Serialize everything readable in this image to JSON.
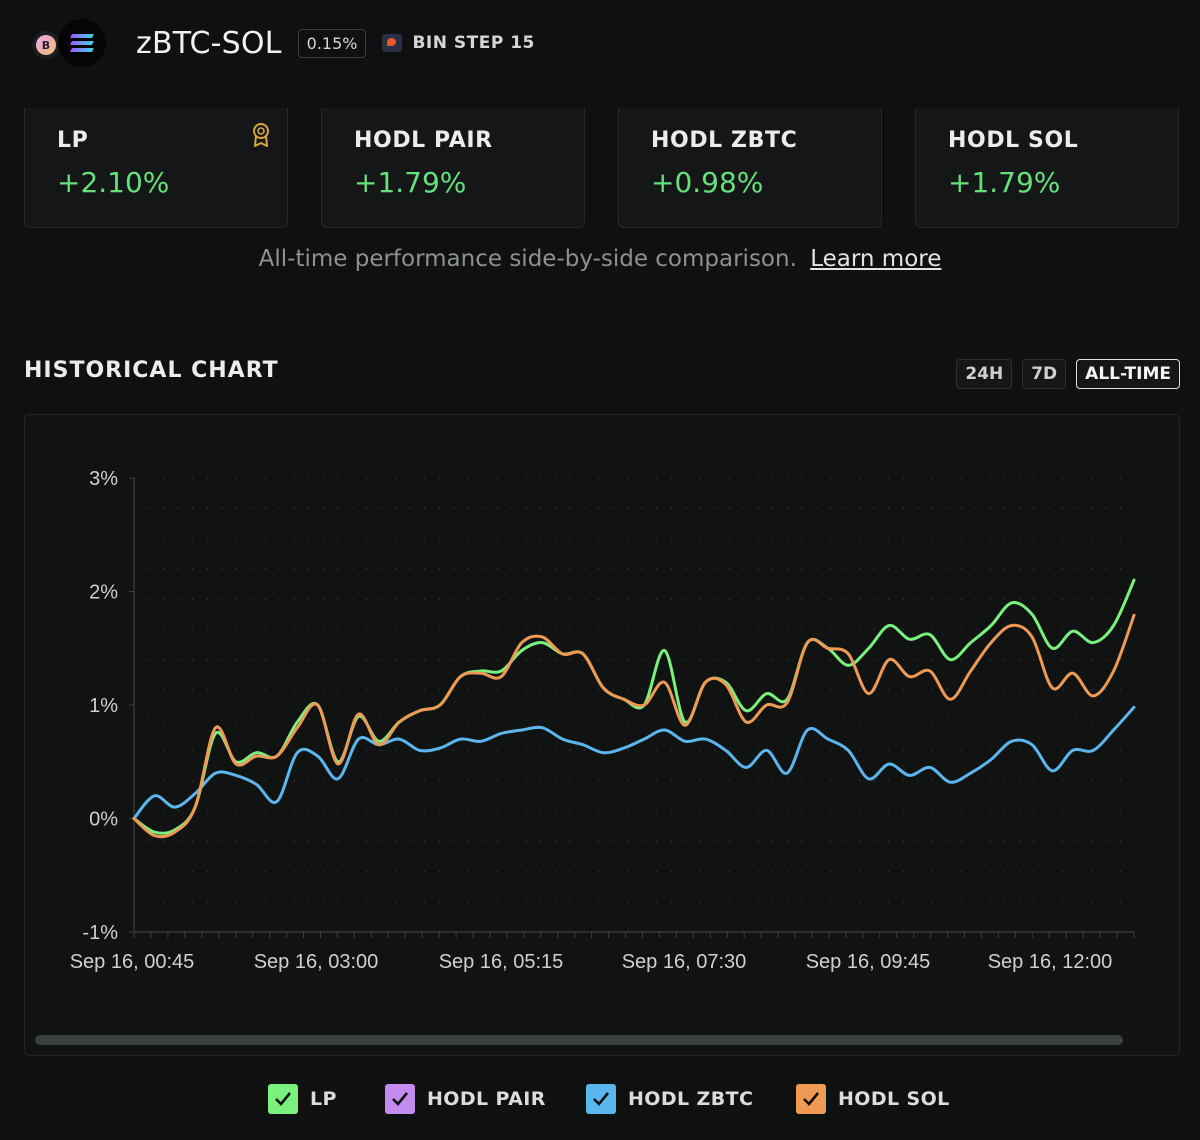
{
  "header": {
    "pair_name": "zBTC-SOL",
    "fee": "0.15%",
    "bin_step": "BIN STEP 15",
    "icons": [
      "zbtc-token-icon",
      "sol-token-icon",
      "bin-step-icon"
    ]
  },
  "cards": [
    {
      "label": "LP",
      "value": "+2.10%",
      "icon": "award-icon"
    },
    {
      "label": "HODL PAIR",
      "value": "+1.79%"
    },
    {
      "label": "HODL ZBTC",
      "value": "+0.98%"
    },
    {
      "label": "HODL SOL",
      "value": "+1.79%"
    }
  ],
  "caption": {
    "text": "All-time performance side-by-side comparison.",
    "link": "Learn more"
  },
  "historical": {
    "title": "HISTORICAL CHART",
    "ranges": [
      "24H",
      "7D",
      "ALL-TIME"
    ],
    "active_range": "ALL-TIME"
  },
  "colors": {
    "positive": "#66e07a",
    "lp": "#7af07f",
    "hodl_pair": "#c58cf0",
    "hodl_zbtc": "#5cb6ee",
    "hodl_sol": "#ee9a55"
  },
  "chart_data": {
    "type": "line",
    "title": "",
    "xlabel": "",
    "ylabel": "",
    "ylim": [
      -1,
      3
    ],
    "y_ticks": [
      "3%",
      "2%",
      "1%",
      "0%",
      "-1%"
    ],
    "x_ticks": [
      "Sep 16, 00:45",
      "Sep 16, 03:00",
      "Sep 16, 05:15",
      "Sep 16, 07:30",
      "Sep 16, 09:45",
      "Sep 16, 12:00"
    ],
    "x": [
      "00:30",
      "00:45",
      "01:00",
      "01:15",
      "01:30",
      "01:45",
      "02:00",
      "02:15",
      "02:30",
      "02:45",
      "03:00",
      "03:15",
      "03:30",
      "03:45",
      "04:00",
      "04:15",
      "04:30",
      "04:45",
      "05:00",
      "05:15",
      "05:30",
      "05:45",
      "06:00",
      "06:15",
      "06:30",
      "06:45",
      "07:00",
      "07:15",
      "07:30",
      "07:45",
      "08:00",
      "08:15",
      "08:30",
      "08:45",
      "09:00",
      "09:15",
      "09:30",
      "09:45",
      "10:00",
      "10:15",
      "10:30",
      "10:45",
      "11:00",
      "11:15",
      "11:30",
      "11:45",
      "12:00",
      "12:15",
      "12:30",
      "12:45"
    ],
    "grid": true,
    "legend_position": "bottom",
    "series": [
      {
        "name": "LP",
        "color": "#7af07f",
        "values": [
          0.0,
          -0.12,
          -0.1,
          0.1,
          0.75,
          0.5,
          0.58,
          0.55,
          0.85,
          1.0,
          0.5,
          0.9,
          0.68,
          0.85,
          0.95,
          1.0,
          1.25,
          1.3,
          1.3,
          1.48,
          1.55,
          1.45,
          1.45,
          1.15,
          1.05,
          1.0,
          1.48,
          0.85,
          1.2,
          1.2,
          0.95,
          1.1,
          1.05,
          1.55,
          1.5,
          1.35,
          1.5,
          1.7,
          1.58,
          1.62,
          1.4,
          1.55,
          1.7,
          1.9,
          1.8,
          1.5,
          1.65,
          1.55,
          1.7,
          2.1
        ]
      },
      {
        "name": "HODL SOL",
        "color": "#ee9a55",
        "values": [
          0.0,
          -0.15,
          -0.12,
          0.1,
          0.8,
          0.48,
          0.55,
          0.55,
          0.8,
          1.0,
          0.48,
          0.92,
          0.65,
          0.85,
          0.95,
          1.0,
          1.25,
          1.28,
          1.25,
          1.55,
          1.6,
          1.45,
          1.45,
          1.15,
          1.05,
          1.0,
          1.2,
          0.82,
          1.2,
          1.18,
          0.85,
          1.0,
          1.02,
          1.55,
          1.5,
          1.45,
          1.1,
          1.4,
          1.25,
          1.3,
          1.05,
          1.3,
          1.55,
          1.7,
          1.6,
          1.15,
          1.28,
          1.08,
          1.3,
          1.79
        ]
      },
      {
        "name": "HODL ZBTC",
        "color": "#5cb6ee",
        "values": [
          0.0,
          0.2,
          0.1,
          0.22,
          0.4,
          0.38,
          0.3,
          0.15,
          0.58,
          0.55,
          0.35,
          0.7,
          0.65,
          0.7,
          0.6,
          0.62,
          0.7,
          0.68,
          0.75,
          0.78,
          0.8,
          0.7,
          0.65,
          0.58,
          0.62,
          0.7,
          0.78,
          0.68,
          0.7,
          0.6,
          0.45,
          0.6,
          0.4,
          0.78,
          0.7,
          0.6,
          0.35,
          0.48,
          0.38,
          0.45,
          0.32,
          0.4,
          0.52,
          0.68,
          0.65,
          0.42,
          0.6,
          0.6,
          0.78,
          0.98
        ]
      }
    ]
  },
  "legend": [
    {
      "label": "LP",
      "color": "#7af07f"
    },
    {
      "label": "HODL PAIR",
      "color": "#c58cf0"
    },
    {
      "label": "HODL ZBTC",
      "color": "#5cb6ee"
    },
    {
      "label": "HODL SOL",
      "color": "#ee9a55"
    }
  ]
}
